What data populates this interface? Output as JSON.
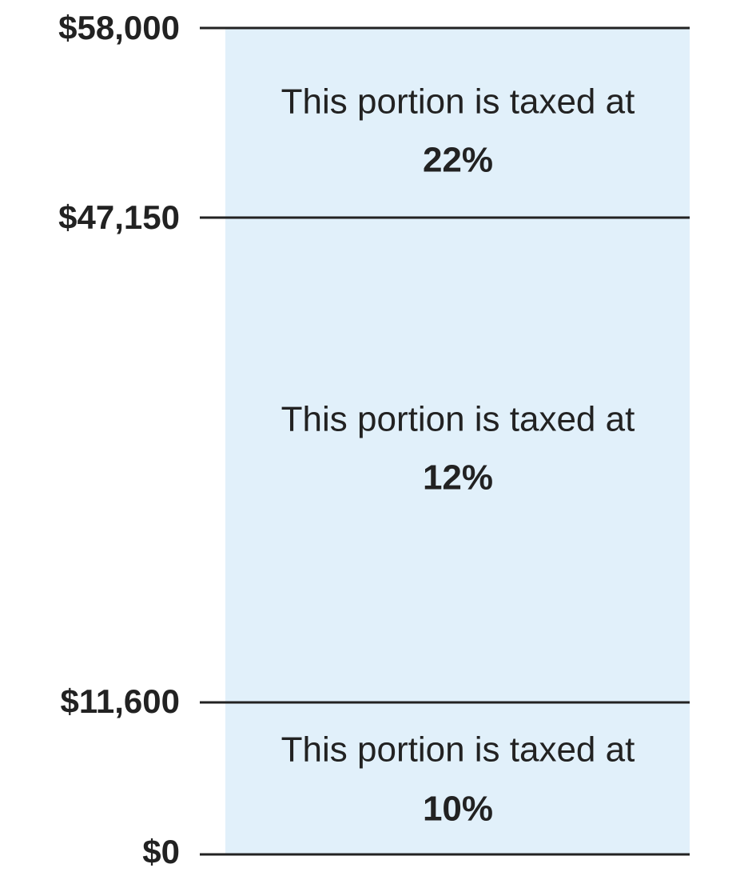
{
  "levels": [
    "$58,000",
    "$47,150",
    "$11,600",
    "$0"
  ],
  "bands": [
    {
      "text": "This portion is taxed at",
      "rate": "22%"
    },
    {
      "text": "This portion is taxed at",
      "rate": "12%"
    },
    {
      "text": "This portion is taxed at",
      "rate": "10%"
    }
  ]
}
